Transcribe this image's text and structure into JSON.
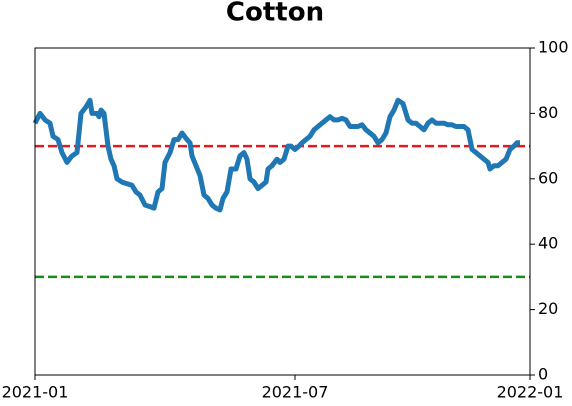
{
  "chart_data": {
    "type": "line",
    "title": "Cotton",
    "xlim": [
      0,
      495
    ],
    "xticks": [
      {
        "value": 0,
        "label": "2021-01"
      },
      {
        "value": 260,
        "label": "2021-07"
      },
      {
        "value": 495,
        "label": "2022-01"
      }
    ],
    "ylim": [
      0,
      100
    ],
    "yticks": [
      0,
      20,
      40,
      60,
      80,
      100
    ],
    "y_axis_side": "right",
    "reference_lines": [
      {
        "value": 70,
        "color": "#e41a1c"
      },
      {
        "value": 30,
        "color": "#1a8c1a"
      }
    ],
    "series": [
      {
        "color": "#1f77b4",
        "x": [
          0,
          5,
          10,
          15,
          18,
          23,
          27,
          32,
          37,
          42,
          46,
          51,
          55,
          57,
          62,
          64,
          66,
          69,
          73,
          76,
          79,
          82,
          87,
          92,
          97,
          101,
          105,
          110,
          115,
          119,
          123,
          127,
          130,
          135,
          139,
          143,
          147,
          152,
          155,
          157,
          161,
          165,
          169,
          173,
          177,
          181,
          185,
          188,
          192,
          196,
          201,
          205,
          209,
          212,
          215,
          219,
          223,
          227,
          231,
          233,
          237,
          242,
          245,
          249,
          253,
          256,
          260,
          264,
          267,
          271,
          275,
          279,
          283,
          287,
          291,
          295,
          299,
          303,
          307,
          311,
          315,
          319,
          323,
          327,
          331,
          335,
          339,
          343,
          347,
          351,
          355,
          359,
          363,
          368,
          373,
          377,
          381,
          385,
          389,
          393,
          397,
          401,
          405,
          409,
          413,
          417,
          421,
          425,
          429,
          433,
          437,
          441,
          445,
          449,
          453,
          455,
          459,
          463,
          467,
          471,
          475,
          479,
          482,
          485
        ],
        "values": [
          77,
          80,
          78,
          77,
          73,
          72,
          68,
          65,
          67,
          68,
          80,
          82,
          84,
          80,
          80,
          79,
          81,
          80,
          70,
          66,
          64,
          60,
          59,
          58.5,
          58,
          56,
          55,
          52,
          51.5,
          51,
          56,
          57,
          65,
          68,
          72,
          72,
          74,
          72,
          71,
          67,
          64,
          61,
          55,
          54,
          52,
          51,
          50.5,
          54,
          56,
          63,
          63,
          67,
          68,
          66,
          60,
          59,
          57,
          58,
          59,
          63,
          64,
          66,
          65,
          66,
          70,
          70,
          69,
          70,
          71,
          72,
          73,
          75,
          76,
          77,
          78,
          79,
          78,
          78,
          78.5,
          78,
          76,
          76,
          76,
          76.5,
          75,
          74,
          73,
          71,
          72,
          74,
          79,
          81,
          84,
          83,
          78,
          77,
          77,
          76,
          75,
          77,
          78,
          77,
          77,
          77,
          76.5,
          76.5,
          76,
          76,
          76,
          75,
          69,
          68,
          67,
          66,
          65,
          63,
          64,
          64,
          65,
          66,
          69,
          70,
          71,
          71
        ]
      }
    ]
  }
}
